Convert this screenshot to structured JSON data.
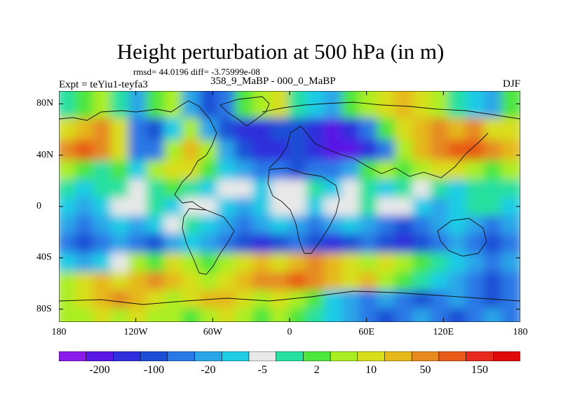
{
  "title": "Height perturbation at 500 hPa (in m)",
  "stats": "rmsd= 44.0196 diff= -3.75999e-08",
  "expt": "Expt = teYiu1-teyfa3",
  "period": "358_9_MaBP - 000_0_MaBP",
  "season": "DJF",
  "map": {
    "lon_ticks": [
      "180",
      "120W",
      "60W",
      "0",
      "60E",
      "120E",
      "180"
    ],
    "lat_ticks": [
      "80N",
      "40N",
      "0",
      "40S",
      "80S"
    ]
  },
  "colorbar": {
    "colors": [
      "#8c1aeb",
      "#5a18e6",
      "#2f2fdd",
      "#1c4fd6",
      "#2a78e6",
      "#2aa6e8",
      "#1fcce6",
      "#e8e8e8",
      "#26e0a0",
      "#4ce63c",
      "#aaee22",
      "#d8de1a",
      "#e6b81a",
      "#e68a20",
      "#e85a18",
      "#e82a1e",
      "#e00a0a"
    ],
    "labels": [
      "-200",
      "-100",
      "-20",
      "-5",
      "2",
      "10",
      "50",
      "150"
    ]
  },
  "field_bands": [
    {
      "lat": 78,
      "values": [
        "#26e0a0",
        "#4ce63c",
        "#aaee22",
        "#26e0a0",
        "#2aa6e8",
        "#4ce63c",
        "#aaee22",
        "#2aa6e8",
        "#1c4fd6",
        "#2a78e6",
        "#4ce63c",
        "#aaee22",
        "#d8de1a",
        "#26e0a0",
        "#1fcce6",
        "#2aa6e8",
        "#4ce63c",
        "#aaee22",
        "#d8de1a",
        "#e6b81a",
        "#d8de1a",
        "#aaee22",
        "#26e0a0",
        "#1fcce6",
        "#2aa6e8",
        "#4ce63c"
      ]
    },
    {
      "lat": 60,
      "values": [
        "#d8de1a",
        "#e6b81a",
        "#e68a20",
        "#d8de1a",
        "#2a78e6",
        "#1c4fd6",
        "#1fcce6",
        "#aaee22",
        "#2aa6e8",
        "#1c4fd6",
        "#2f2fdd",
        "#2f2fdd",
        "#1c4fd6",
        "#1c4fd6",
        "#2f2fdd",
        "#5a18e6",
        "#2f2fdd",
        "#2a78e6",
        "#4ce63c",
        "#d8de1a",
        "#e6b81a",
        "#e68a20",
        "#e6b81a",
        "#e68a20",
        "#d8de1a",
        "#d8de1a"
      ]
    },
    {
      "lat": 44,
      "values": [
        "#e68a20",
        "#e85a18",
        "#e68a20",
        "#d8de1a",
        "#2a78e6",
        "#2a78e6",
        "#aaee22",
        "#e6b81a",
        "#aaee22",
        "#2aa6e8",
        "#1c4fd6",
        "#2f2fdd",
        "#2f2fdd",
        "#1c4fd6",
        "#2f2fdd",
        "#5a18e6",
        "#5a18e6",
        "#2f2fdd",
        "#2a78e6",
        "#aaee22",
        "#e6b81a",
        "#e68a20",
        "#e85a18",
        "#e85a18",
        "#e68a20",
        "#e6b81a"
      ]
    },
    {
      "lat": 28,
      "values": [
        "#aaee22",
        "#4ce63c",
        "#26e0a0",
        "#4ce63c",
        "#1fcce6",
        "#aaee22",
        "#d8de1a",
        "#d8de1a",
        "#4ce63c",
        "#1fcce6",
        "#2aa6e8",
        "#2a78e6",
        "#2a78e6",
        "#1c4fd6",
        "#2a78e6",
        "#2a78e6",
        "#2aa6e8",
        "#4ce63c",
        "#aaee22",
        "#4ce63c",
        "#aaee22",
        "#d8de1a",
        "#d8de1a",
        "#aaee22",
        "#4ce63c",
        "#aaee22"
      ]
    },
    {
      "lat": 14,
      "values": [
        "#26e0a0",
        "#1fcce6",
        "#26e0a0",
        "#26e0a0",
        "#e8e8e8",
        "#26e0a0",
        "#4ce63c",
        "#26e0a0",
        "#1fcce6",
        "#e8e8e8",
        "#e8e8e8",
        "#1fcce6",
        "#e8e8e8",
        "#e8e8e8",
        "#26e0a0",
        "#1fcce6",
        "#e8e8e8",
        "#26e0a0",
        "#1fcce6",
        "#26e0a0",
        "#e8e8e8",
        "#26e0a0",
        "#1fcce6",
        "#26e0a0",
        "#26e0a0",
        "#26e0a0"
      ]
    },
    {
      "lat": 0,
      "values": [
        "#1fcce6",
        "#2aa6e8",
        "#1fcce6",
        "#e8e8e8",
        "#e8e8e8",
        "#26e0a0",
        "#1fcce6",
        "#e8e8e8",
        "#e8e8e8",
        "#1fcce6",
        "#2aa6e8",
        "#1fcce6",
        "#e8e8e8",
        "#e8e8e8",
        "#1fcce6",
        "#e8e8e8",
        "#e8e8e8",
        "#26e0a0",
        "#e8e8e8",
        "#e8e8e8",
        "#1fcce6",
        "#2aa6e8",
        "#1fcce6",
        "#26e0a0",
        "#26e0a0",
        "#1fcce6"
      ]
    },
    {
      "lat": -14,
      "values": [
        "#2aa6e8",
        "#2a78e6",
        "#2aa6e8",
        "#1fcce6",
        "#2aa6e8",
        "#1fcce6",
        "#e8e8e8",
        "#26e0a0",
        "#1fcce6",
        "#2aa6e8",
        "#2a78e6",
        "#2aa6e8",
        "#1fcce6",
        "#2aa6e8",
        "#2a78e6",
        "#2aa6e8",
        "#1fcce6",
        "#2aa6e8",
        "#2a78e6",
        "#1c4fd6",
        "#2a78e6",
        "#2aa6e8",
        "#1fcce6",
        "#2aa6e8",
        "#2a78e6",
        "#2aa6e8"
      ]
    },
    {
      "lat": -28,
      "values": [
        "#2a78e6",
        "#1c4fd6",
        "#2a78e6",
        "#2aa6e8",
        "#2a78e6",
        "#1c4fd6",
        "#2aa6e8",
        "#1fcce6",
        "#2aa6e8",
        "#2a78e6",
        "#1c4fd6",
        "#2f2fdd",
        "#1c4fd6",
        "#2a78e6",
        "#1c4fd6",
        "#2f2fdd",
        "#1c4fd6",
        "#2a78e6",
        "#1c4fd6",
        "#2f2fdd",
        "#1c4fd6",
        "#2a78e6",
        "#2aa6e8",
        "#2a78e6",
        "#1c4fd6",
        "#2a78e6"
      ]
    },
    {
      "lat": -44,
      "values": [
        "#1fcce6",
        "#2aa6e8",
        "#1fcce6",
        "#e8e8e8",
        "#aaee22",
        "#4ce63c",
        "#d8de1a",
        "#aaee22",
        "#4ce63c",
        "#aaee22",
        "#d8de1a",
        "#e6b81a",
        "#d8de1a",
        "#e6b81a",
        "#e68a20",
        "#e6b81a",
        "#d8de1a",
        "#aaee22",
        "#d8de1a",
        "#aaee22",
        "#4ce63c",
        "#26e0a0",
        "#1fcce6",
        "#2aa6e8",
        "#2a78e6",
        "#2aa6e8"
      ]
    },
    {
      "lat": -58,
      "values": [
        "#aaee22",
        "#d8de1a",
        "#e6b81a",
        "#d8de1a",
        "#e6b81a",
        "#e68a20",
        "#e6b81a",
        "#d8de1a",
        "#aaee22",
        "#d8de1a",
        "#e6b81a",
        "#e68a20",
        "#e68a20",
        "#e85a18",
        "#e68a20",
        "#e6b81a",
        "#d8de1a",
        "#e6b81a",
        "#aaee22",
        "#4ce63c",
        "#26e0a0",
        "#1fcce6",
        "#2aa6e8",
        "#2a78e6",
        "#1c4fd6",
        "#2a78e6"
      ]
    },
    {
      "lat": -72,
      "values": [
        "#aaee22",
        "#d8de1a",
        "#e6b81a",
        "#e68a20",
        "#e6b81a",
        "#d8de1a",
        "#aaee22",
        "#d8de1a",
        "#e6b81a",
        "#e6b81a",
        "#d8de1a",
        "#aaee22",
        "#d8de1a",
        "#aaee22",
        "#4ce63c",
        "#1fcce6",
        "#2aa6e8",
        "#2a78e6",
        "#2aa6e8",
        "#2a78e6",
        "#1c4fd6",
        "#2a78e6",
        "#2aa6e8",
        "#2a78e6",
        "#1c4fd6",
        "#2a78e6"
      ]
    },
    {
      "lat": -86,
      "values": [
        "#aaee22",
        "#aaee22",
        "#d8de1a",
        "#aaee22",
        "#d8de1a",
        "#aaee22",
        "#aaee22",
        "#4ce63c",
        "#aaee22",
        "#d8de1a",
        "#aaee22",
        "#4ce63c",
        "#aaee22",
        "#4ce63c",
        "#26e0a0",
        "#1fcce6",
        "#2aa6e8",
        "#2a78e6",
        "#1c4fd6",
        "#2a78e6",
        "#2aa6e8",
        "#2a78e6",
        "#1c4fd6",
        "#2a78e6",
        "#2aa6e8",
        "#2a78e6"
      ]
    }
  ]
}
